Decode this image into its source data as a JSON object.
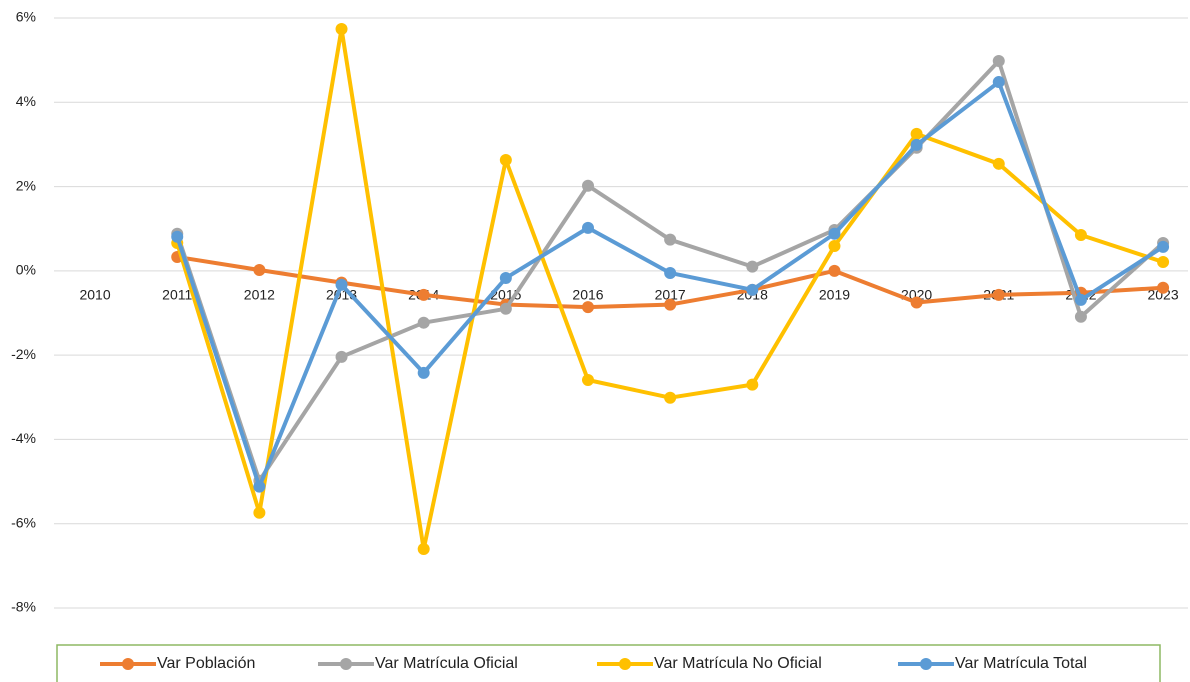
{
  "chart_data": {
    "type": "line",
    "categories": [
      "2010",
      "2011",
      "2012",
      "2013",
      "2014",
      "2015",
      "2016",
      "2017",
      "2018",
      "2019",
      "2020",
      "2021",
      "2022",
      "2023"
    ],
    "series": [
      {
        "name": "Var Población",
        "color": "#ED7D31",
        "values": [
          null,
          0.33,
          0.02,
          -0.28,
          -0.57,
          -0.8,
          -0.86,
          -0.8,
          -0.45,
          0,
          -0.75,
          -0.57,
          -0.52,
          -0.4
        ]
      },
      {
        "name": "Var Matrícula Oficial",
        "color": "#A5A5A5",
        "values": [
          null,
          0.88,
          -4.98,
          -2.04,
          -1.23,
          -0.9,
          2.02,
          0.74,
          0.1,
          0.97,
          2.92,
          4.98,
          -1.09,
          0.66
        ]
      },
      {
        "name": "Var Matrícula No Oficial",
        "color": "#FFC000",
        "values": [
          null,
          0.66,
          -5.74,
          5.74,
          -6.6,
          2.63,
          -2.59,
          -3.01,
          -2.7,
          0.59,
          3.25,
          2.54,
          0.85,
          0.21
        ]
      },
      {
        "name": "Var Matrícula Total",
        "color": "#5B9BD5",
        "values": [
          null,
          0.81,
          -5.12,
          -0.33,
          -2.42,
          -0.17,
          1.02,
          -0.05,
          -0.45,
          0.88,
          2.99,
          4.48,
          -0.69,
          0.57
        ]
      }
    ],
    "ylim": [
      -8,
      6
    ],
    "yticks": [
      {
        "value": -8,
        "label": "-8%"
      },
      {
        "value": -6,
        "label": "-6%"
      },
      {
        "value": -4,
        "label": "-4%"
      },
      {
        "value": -2,
        "label": "-2%"
      },
      {
        "value": 0,
        "label": "0%"
      },
      {
        "value": 2,
        "label": "2%"
      },
      {
        "value": 4,
        "label": "4%"
      },
      {
        "value": 6,
        "label": "6%"
      }
    ],
    "grid": true,
    "legend": "bottom"
  }
}
